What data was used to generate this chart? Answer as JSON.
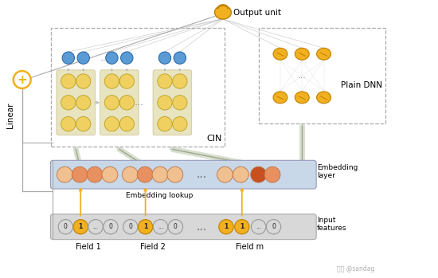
{
  "bg_color": "#ffffff",
  "output_unit_label": "Output unit",
  "cin_label": "CIN",
  "plain_dnn_label": "Plain DNN",
  "linear_label": "Linear",
  "embedding_layer_label": "Embedding\nlayer",
  "embedding_lookup_label": "Embedding lookup",
  "input_features_label": "Input\nfeatures",
  "field_labels": [
    "Field 1",
    "Field 2",
    "Field m"
  ],
  "watermark_cn": "头条",
  "watermark": "@sandag",
  "node_blue": "#5b9bd5",
  "node_yellow_light": "#f0d060",
  "node_orange": "#e89060",
  "node_orange_dark": "#c85020",
  "node_orange_light": "#f0c090",
  "node_gold": "#f0b020",
  "node_gold_dark": "#c08000",
  "dashed_color": "#aaaaaa",
  "arrow_gray": "#bbbbbb",
  "line_gray": "#aaaaaa",
  "embed_bg": "#c8d8e8",
  "input_bg": "#d8d8d8"
}
